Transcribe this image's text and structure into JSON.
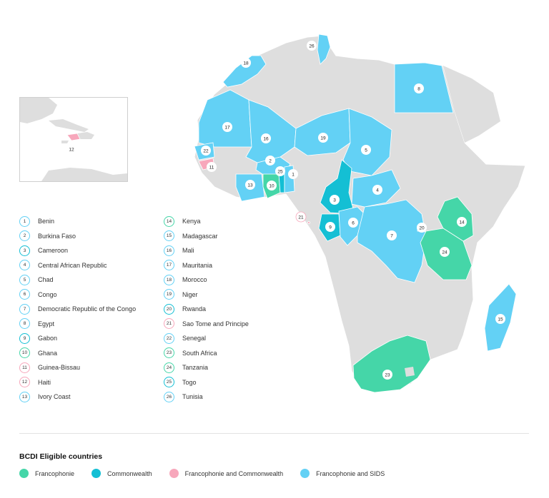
{
  "colors": {
    "francophonie": "#45d6a8",
    "commonwealth": "#14bfd4",
    "francophonie_commonwealth": "#f7a7bb",
    "francophonie_sids": "#63d1f5",
    "other_land": "#dedede"
  },
  "countries": [
    {
      "num": "1",
      "name": "Benin",
      "group": "francophonie_sids"
    },
    {
      "num": "2",
      "name": "Burkina Faso",
      "group": "francophonie_sids"
    },
    {
      "num": "3",
      "name": "Cameroon",
      "group": "commonwealth"
    },
    {
      "num": "4",
      "name": "Central African Republic",
      "group": "francophonie_sids"
    },
    {
      "num": "5",
      "name": "Chad",
      "group": "francophonie_sids"
    },
    {
      "num": "6",
      "name": "Congo",
      "group": "francophonie_sids"
    },
    {
      "num": "7",
      "name": "Democratic Republic of the Congo",
      "group": "francophonie_sids"
    },
    {
      "num": "8",
      "name": "Egypt",
      "group": "francophonie_sids"
    },
    {
      "num": "9",
      "name": "Gabon",
      "group": "commonwealth"
    },
    {
      "num": "10",
      "name": "Ghana",
      "group": "francophonie"
    },
    {
      "num": "11",
      "name": "Guinea-Bissau",
      "group": "francophonie_commonwealth"
    },
    {
      "num": "12",
      "name": "Haiti",
      "group": "francophonie_commonwealth"
    },
    {
      "num": "13",
      "name": "Ivory Coast",
      "group": "francophonie_sids"
    },
    {
      "num": "14",
      "name": "Kenya",
      "group": "francophonie"
    },
    {
      "num": "15",
      "name": "Madagascar",
      "group": "francophonie_sids"
    },
    {
      "num": "16",
      "name": "Mali",
      "group": "francophonie_sids"
    },
    {
      "num": "17",
      "name": "Mauritania",
      "group": "francophonie_sids"
    },
    {
      "num": "18",
      "name": "Morocco",
      "group": "francophonie_sids"
    },
    {
      "num": "19",
      "name": "Niger",
      "group": "francophonie_sids"
    },
    {
      "num": "20",
      "name": "Rwanda",
      "group": "commonwealth"
    },
    {
      "num": "21",
      "name": "Sao Tome and Principe",
      "group": "francophonie_commonwealth"
    },
    {
      "num": "22",
      "name": "Senegal",
      "group": "francophonie_sids"
    },
    {
      "num": "23",
      "name": "South Africa",
      "group": "francophonie"
    },
    {
      "num": "24",
      "name": "Tanzania",
      "group": "francophonie"
    },
    {
      "num": "25",
      "name": "Togo",
      "group": "commonwealth"
    },
    {
      "num": "26",
      "name": "Tunisia",
      "group": "francophonie_sids"
    }
  ],
  "key": {
    "title": "BCDI Eligible countries",
    "items": [
      {
        "label": "Francophonie",
        "group": "francophonie"
      },
      {
        "label": "Commonwealth",
        "group": "commonwealth"
      },
      {
        "label": "Francophonie and Commonwealth",
        "group": "francophonie_commonwealth"
      },
      {
        "label": "Francophonie and SIDS",
        "group": "francophonie_sids"
      }
    ]
  }
}
